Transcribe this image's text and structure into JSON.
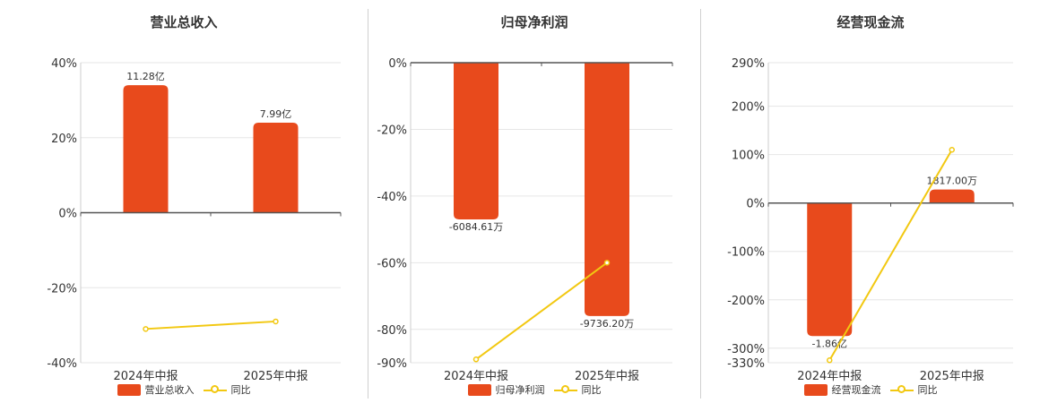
{
  "colors": {
    "bar": "#E84A1C",
    "line": "#F2C811"
  },
  "chart_data": [
    {
      "type": "bar",
      "title": "营业总收入",
      "categories": [
        "2024年中报",
        "2025年中报"
      ],
      "series": [
        {
          "name": "营业总收入",
          "values": [
            34.0,
            24.0
          ],
          "labels": [
            "11.28亿",
            "7.99亿"
          ]
        },
        {
          "name": "同比",
          "type": "line",
          "values": [
            -31.0,
            -29.0
          ]
        }
      ],
      "yticks": [
        40,
        20,
        0,
        -20,
        -40
      ],
      "ytick_labels": [
        "40%",
        "20%",
        "0%",
        "-20%",
        "-40%"
      ],
      "ylim": [
        -40,
        40
      ],
      "legend": "bottom"
    },
    {
      "type": "bar",
      "title": "归母净利润",
      "categories": [
        "2024年中报",
        "2025年中报"
      ],
      "series": [
        {
          "name": "归母净利润",
          "values": [
            -47.0,
            -76.0
          ],
          "labels": [
            "-6084.61万",
            "-9736.20万"
          ]
        },
        {
          "name": "同比",
          "type": "line",
          "values": [
            -89.0,
            -60.0
          ]
        }
      ],
      "yticks": [
        0,
        -20,
        -40,
        -60,
        -80,
        -90
      ],
      "ytick_labels": [
        "0%",
        "-20%",
        "-40%",
        "-60%",
        "-80%",
        "-90%"
      ],
      "ylim": [
        -90,
        0
      ],
      "legend": "bottom"
    },
    {
      "type": "bar",
      "title": "经营现金流",
      "categories": [
        "2024年中报",
        "2025年中报"
      ],
      "series": [
        {
          "name": "经营现金流",
          "values": [
            -275.0,
            28.0
          ],
          "labels": [
            "-1.86亿",
            "1817.00万"
          ]
        },
        {
          "name": "同比",
          "type": "line",
          "values": [
            -325.0,
            110.0
          ]
        }
      ],
      "yticks": [
        290,
        200,
        100,
        0,
        -100,
        -200,
        -300,
        -330
      ],
      "ytick_labels": [
        "290%",
        "200%",
        "100%",
        "0%",
        "-100%",
        "-200%",
        "-300%",
        "-330%"
      ],
      "ylim": [
        -330,
        290
      ],
      "legend": "bottom"
    }
  ]
}
